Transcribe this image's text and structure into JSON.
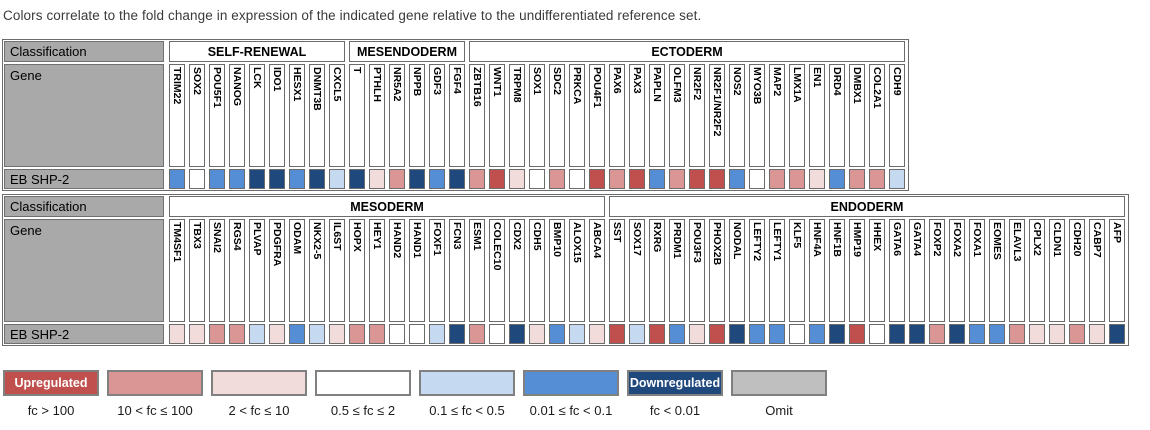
{
  "chart_data": {
    "type": "heatmap",
    "title": "Colors correlate to the fold change in expression of the indicated gene relative to the undifferentiated reference set.",
    "row_header": "Classification",
    "gene_header": "Gene",
    "sample_row_label": "EB SHP-2",
    "bin_colors": {
      "fc > 100": "#C0504D",
      "10 < fc ≤ 100": "#D99694",
      "2 < fc ≤ 10": "#F2DCDB",
      "0.5 ≤ fc ≤ 2": "#FFFFFF",
      "0.1 ≤ fc < 0.5": "#C5D9F1",
      "0.01 ≤ fc < 0.1": "#558ED5",
      "fc < 0.01": "#1F497D",
      "Omit": "#BFBFBF"
    },
    "tables": [
      {
        "groups": [
          {
            "classification": "SELF-RENEWAL",
            "genes": [
              {
                "g": "TRIM22",
                "fc": "0.01 ≤ fc < 0.1"
              },
              {
                "g": "SOX2",
                "fc": "0.5 ≤ fc ≤ 2"
              },
              {
                "g": "POU5F1",
                "fc": "0.01 ≤ fc < 0.1"
              },
              {
                "g": "NANOG",
                "fc": "0.01 ≤ fc < 0.1"
              },
              {
                "g": "LCK",
                "fc": "fc < 0.01"
              },
              {
                "g": "IDO1",
                "fc": "fc < 0.01"
              },
              {
                "g": "HESX1",
                "fc": "0.01 ≤ fc < 0.1"
              },
              {
                "g": "DNMT3B",
                "fc": "fc < 0.01"
              },
              {
                "g": "CXCL5",
                "fc": "0.1 ≤ fc < 0.5"
              }
            ]
          },
          {
            "classification": "MESENDODERM",
            "genes": [
              {
                "g": "T",
                "fc": "fc < 0.01"
              },
              {
                "g": "PTHLH",
                "fc": "2 < fc ≤ 10"
              },
              {
                "g": "NR5A2",
                "fc": "10 < fc ≤ 100"
              },
              {
                "g": "NPPB",
                "fc": "fc < 0.01"
              },
              {
                "g": "GDF3",
                "fc": "0.01 ≤ fc < 0.1"
              },
              {
                "g": "FGF4",
                "fc": "fc < 0.01"
              }
            ]
          },
          {
            "classification": "ECTODERM",
            "genes": [
              {
                "g": "ZBTB16",
                "fc": "10 < fc ≤ 100"
              },
              {
                "g": "WNT1",
                "fc": "fc > 100"
              },
              {
                "g": "TRPM8",
                "fc": "2 < fc ≤ 10"
              },
              {
                "g": "SOX1",
                "fc": "0.5 ≤ fc ≤ 2"
              },
              {
                "g": "SDC2",
                "fc": "10 < fc ≤ 100"
              },
              {
                "g": "PRKCA",
                "fc": "0.5 ≤ fc ≤ 2"
              },
              {
                "g": "POU4F1",
                "fc": "fc > 100"
              },
              {
                "g": "PAX6",
                "fc": "10 < fc ≤ 100"
              },
              {
                "g": "PAX3",
                "fc": "fc > 100"
              },
              {
                "g": "PAPLN",
                "fc": "0.01 ≤ fc < 0.1"
              },
              {
                "g": "OLFM3",
                "fc": "10 < fc ≤ 100"
              },
              {
                "g": "NR2F2",
                "fc": "fc > 100"
              },
              {
                "g": "NR2F1/NR2F2",
                "fc": "fc > 100"
              },
              {
                "g": "NOS2",
                "fc": "0.01 ≤ fc < 0.1"
              },
              {
                "g": "MYO3B",
                "fc": "0.5 ≤ fc ≤ 2"
              },
              {
                "g": "MAP2",
                "fc": "10 < fc ≤ 100"
              },
              {
                "g": "LMX1A",
                "fc": "10 < fc ≤ 100"
              },
              {
                "g": "EN1",
                "fc": "2 < fc ≤ 10"
              },
              {
                "g": "DRD4",
                "fc": "0.01 ≤ fc < 0.1"
              },
              {
                "g": "DMBX1",
                "fc": "10 < fc ≤ 100"
              },
              {
                "g": "COL2A1",
                "fc": "10 < fc ≤ 100"
              },
              {
                "g": "CDH9",
                "fc": "0.1 ≤ fc < 0.5"
              }
            ]
          }
        ]
      },
      {
        "groups": [
          {
            "classification": "MESODERM",
            "genes": [
              {
                "g": "TM4SF1",
                "fc": "2 < fc ≤ 10"
              },
              {
                "g": "TBX3",
                "fc": "2 < fc ≤ 10"
              },
              {
                "g": "SNAI2",
                "fc": "10 < fc ≤ 100"
              },
              {
                "g": "RGS4",
                "fc": "10 < fc ≤ 100"
              },
              {
                "g": "PLVAP",
                "fc": "0.1 ≤ fc < 0.5"
              },
              {
                "g": "PDGFRA",
                "fc": "2 < fc ≤ 10"
              },
              {
                "g": "ODAM",
                "fc": "0.01 ≤ fc < 0.1"
              },
              {
                "g": "NKX2-5",
                "fc": "0.1 ≤ fc < 0.5"
              },
              {
                "g": "IL6ST",
                "fc": "2 < fc ≤ 10"
              },
              {
                "g": "HOPX",
                "fc": "10 < fc ≤ 100"
              },
              {
                "g": "HEY1",
                "fc": "10 < fc ≤ 100"
              },
              {
                "g": "HAND2",
                "fc": "0.5 ≤ fc ≤ 2"
              },
              {
                "g": "HAND1",
                "fc": "0.5 ≤ fc ≤ 2"
              },
              {
                "g": "FOXF1",
                "fc": "0.1 ≤ fc < 0.5"
              },
              {
                "g": "FCN3",
                "fc": "fc < 0.01"
              },
              {
                "g": "ESM1",
                "fc": "10 < fc ≤ 100"
              },
              {
                "g": "COLEC10",
                "fc": "0.5 ≤ fc ≤ 2"
              },
              {
                "g": "CDX2",
                "fc": "fc < 0.01"
              },
              {
                "g": "CDH5",
                "fc": "2 < fc ≤ 10"
              },
              {
                "g": "BMP10",
                "fc": "0.01 ≤ fc < 0.1"
              },
              {
                "g": "ALOX15",
                "fc": "0.1 ≤ fc < 0.5"
              },
              {
                "g": "ABCA4",
                "fc": "2 < fc ≤ 10"
              }
            ]
          },
          {
            "classification": "ENDODERM",
            "genes": [
              {
                "g": "SST",
                "fc": "fc > 100"
              },
              {
                "g": "SOX17",
                "fc": "0.1 ≤ fc < 0.5"
              },
              {
                "g": "RXRG",
                "fc": "fc > 100"
              },
              {
                "g": "PRDM1",
                "fc": "0.01 ≤ fc < 0.1"
              },
              {
                "g": "POU3F3",
                "fc": "2 < fc ≤ 10"
              },
              {
                "g": "PHOX2B",
                "fc": "fc > 100"
              },
              {
                "g": "NODAL",
                "fc": "fc < 0.01"
              },
              {
                "g": "LEFTY2",
                "fc": "0.01 ≤ fc < 0.1"
              },
              {
                "g": "LEFTY1",
                "fc": "0.01 ≤ fc < 0.1"
              },
              {
                "g": "KLF5",
                "fc": "0.5 ≤ fc ≤ 2"
              },
              {
                "g": "HNF4A",
                "fc": "0.01 ≤ fc < 0.1"
              },
              {
                "g": "HNF1B",
                "fc": "fc < 0.01"
              },
              {
                "g": "HMP19",
                "fc": "fc > 100"
              },
              {
                "g": "HHEX",
                "fc": "0.5 ≤ fc ≤ 2"
              },
              {
                "g": "GATA6",
                "fc": "fc < 0.01"
              },
              {
                "g": "GATA4",
                "fc": "fc < 0.01"
              },
              {
                "g": "FOXP2",
                "fc": "10 < fc ≤ 100"
              },
              {
                "g": "FOXA2",
                "fc": "fc < 0.01"
              },
              {
                "g": "FOXA1",
                "fc": "0.01 ≤ fc < 0.1"
              },
              {
                "g": "EOMES",
                "fc": "0.01 ≤ fc < 0.1"
              },
              {
                "g": "ELAVL3",
                "fc": "10 < fc ≤ 100"
              },
              {
                "g": "CPLX2",
                "fc": "2 < fc ≤ 10"
              },
              {
                "g": "CLDN1",
                "fc": "2 < fc ≤ 10"
              },
              {
                "g": "CDH20",
                "fc": "10 < fc ≤ 100"
              },
              {
                "g": "CABP7",
                "fc": "2 < fc ≤ 10"
              },
              {
                "g": "AFP",
                "fc": "fc < 0.01"
              }
            ]
          }
        ]
      }
    ],
    "legend": [
      {
        "label": "Upregulated",
        "range": "fc > 100"
      },
      {
        "label": "",
        "range": "10 < fc ≤ 100"
      },
      {
        "label": "",
        "range": "2 < fc ≤ 10"
      },
      {
        "label": "",
        "range": "0.5 ≤ fc ≤ 2"
      },
      {
        "label": "",
        "range": "0.1 ≤ fc < 0.5"
      },
      {
        "label": "",
        "range": "0.01 ≤ fc < 0.1"
      },
      {
        "label": "Downregulated",
        "range": "fc < 0.01"
      },
      {
        "label": "",
        "range": "Omit"
      }
    ]
  }
}
